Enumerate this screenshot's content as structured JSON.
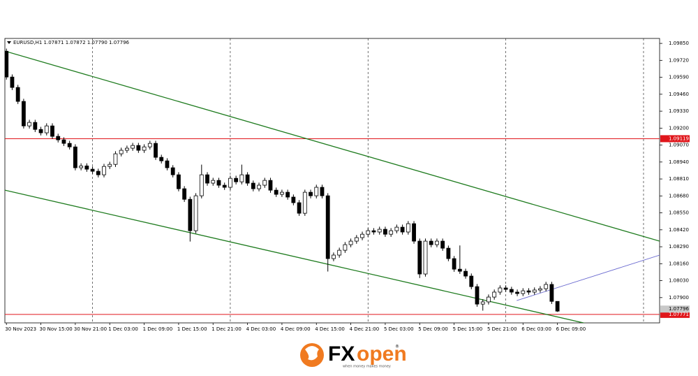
{
  "chart_data": {
    "type": "candlestick",
    "title": "EURUSD,H1  1.07871 1.07872 1.07790 1.07796",
    "categories": [
      "30 Nov 2023",
      null,
      null,
      null,
      null,
      null,
      "30 Nov 15:00",
      null,
      null,
      null,
      null,
      null,
      "30 Nov 21:00",
      null,
      null,
      null,
      null,
      null,
      "1 Dec 03:00",
      null,
      null,
      null,
      null,
      null,
      "1 Dec 09:00",
      null,
      null,
      null,
      null,
      null,
      "1 Dec 15:00",
      null,
      null,
      null,
      null,
      null,
      "1 Dec 21:00",
      null,
      null,
      null,
      null,
      null,
      "4 Dec 03:00",
      null,
      null,
      null,
      null,
      null,
      "4 Dec 09:00",
      null,
      null,
      null,
      null,
      null,
      "4 Dec 15:00",
      null,
      null,
      null,
      null,
      null,
      "4 Dec 21:00",
      null,
      null,
      null,
      null,
      null,
      "5 Dec 03:00",
      null,
      null,
      null,
      null,
      null,
      "5 Dec 09:00",
      null,
      null,
      null,
      null,
      null,
      "5 Dec 15:00",
      null,
      null,
      null,
      null,
      null,
      "5 Dec 21:00",
      null,
      null,
      null,
      null,
      null,
      "6 Dec 03:00",
      null,
      null,
      null,
      null,
      null,
      "6 Dec 09:00"
    ],
    "open": [
      1.0979,
      1.09592,
      1.09512,
      1.09405,
      1.09217,
      1.09244,
      1.0919,
      1.09164,
      1.09217,
      1.09137,
      1.0911,
      1.09083,
      1.09056,
      1.08896,
      1.0891,
      1.08885,
      1.08869,
      1.08842,
      1.08906,
      1.08922,
      1.09003,
      1.0903,
      1.09046,
      1.09067,
      1.0903,
      1.09056,
      1.09083,
      1.08976,
      1.08949,
      1.08896,
      1.08842,
      1.08735,
      1.08654,
      1.08413,
      1.08681,
      1.08842,
      1.08778,
      1.08799,
      1.08762,
      1.08746,
      1.08815,
      1.08788,
      1.08842,
      1.08778,
      1.08735,
      1.08762,
      1.08799,
      1.08724,
      1.08692,
      1.08708,
      1.08671,
      1.08628,
      1.08547,
      1.08708,
      1.08681,
      1.08746,
      1.08681,
      1.08199,
      1.08226,
      1.08263,
      1.08306,
      1.08333,
      1.0836,
      1.08386,
      1.08413,
      1.08403,
      1.08424,
      1.08386,
      1.08413,
      1.0844,
      1.08403,
      1.08467,
      1.08333,
      1.08081,
      1.08333,
      1.08306,
      1.08333,
      1.08279,
      1.08199,
      1.08118,
      1.08102,
      1.08065,
      1.07984,
      1.0785,
      1.07867,
      1.07904,
      1.07942,
      1.07974,
      1.07963,
      1.07942,
      1.07931,
      1.07952,
      1.07942,
      1.07958,
      1.07968,
      1.08001,
      1.07871
    ],
    "high": [
      1.0981,
      1.09612,
      1.09532,
      1.09425,
      1.09264,
      1.09264,
      1.0921,
      1.09237,
      1.09237,
      1.09157,
      1.0913,
      1.09103,
      1.09076,
      1.0893,
      1.0893,
      1.08905,
      1.08889,
      1.08926,
      1.08942,
      1.09023,
      1.0905,
      1.09066,
      1.09087,
      1.09087,
      1.09076,
      1.09103,
      1.09103,
      1.08996,
      1.08969,
      1.08916,
      1.08862,
      1.08755,
      1.08674,
      1.08701,
      1.0892,
      1.08862,
      1.08819,
      1.08819,
      1.08782,
      1.08835,
      1.08835,
      1.0892,
      1.08862,
      1.08798,
      1.08782,
      1.08819,
      1.08819,
      1.08744,
      1.08728,
      1.08728,
      1.08691,
      1.08648,
      1.08728,
      1.08728,
      1.08766,
      1.08766,
      1.08701,
      1.08246,
      1.08283,
      1.08326,
      1.08353,
      1.0838,
      1.08406,
      1.08433,
      1.08433,
      1.08444,
      1.08444,
      1.08433,
      1.0846,
      1.0846,
      1.08487,
      1.08487,
      1.08353,
      1.08353,
      1.08353,
      1.08353,
      1.08353,
      1.08299,
      1.08219,
      1.083,
      1.08122,
      1.08085,
      1.08004,
      1.07887,
      1.07924,
      1.07962,
      1.07994,
      1.07994,
      1.07983,
      1.07962,
      1.07972,
      1.07972,
      1.07978,
      1.07988,
      1.08021,
      1.08021,
      1.07872
    ],
    "low": [
      1.09572,
      1.09492,
      1.09385,
      1.09197,
      1.09197,
      1.0917,
      1.09144,
      1.09144,
      1.09117,
      1.0909,
      1.09063,
      1.09036,
      1.08876,
      1.08876,
      1.08865,
      1.08849,
      1.08822,
      1.08822,
      1.08886,
      1.08902,
      1.08983,
      1.0901,
      1.09026,
      1.0901,
      1.0901,
      1.09036,
      1.08956,
      1.08929,
      1.08876,
      1.08822,
      1.08715,
      1.08634,
      1.0833,
      1.08393,
      1.08661,
      1.08758,
      1.08758,
      1.08742,
      1.08726,
      1.08726,
      1.08768,
      1.08768,
      1.08758,
      1.08715,
      1.08715,
      1.08742,
      1.08704,
      1.08672,
      1.08672,
      1.08651,
      1.08608,
      1.08527,
      1.08527,
      1.08661,
      1.08661,
      1.08661,
      1.081,
      1.08179,
      1.08206,
      1.08243,
      1.08286,
      1.08313,
      1.0834,
      1.08366,
      1.08383,
      1.08383,
      1.08366,
      1.08366,
      1.08393,
      1.08383,
      1.08383,
      1.08313,
      1.0805,
      1.08061,
      1.08286,
      1.08286,
      1.08259,
      1.08179,
      1.08098,
      1.08082,
      1.08045,
      1.07964,
      1.0783,
      1.078,
      1.07847,
      1.07884,
      1.07922,
      1.07943,
      1.07922,
      1.07911,
      1.07911,
      1.07922,
      1.07922,
      1.07938,
      1.07948,
      1.07851,
      1.0779
    ],
    "close": [
      1.09592,
      1.09512,
      1.09405,
      1.09217,
      1.09244,
      1.0919,
      1.09164,
      1.09217,
      1.09137,
      1.0911,
      1.09083,
      1.09056,
      1.08896,
      1.0891,
      1.08885,
      1.08869,
      1.08842,
      1.08906,
      1.08922,
      1.09003,
      1.0903,
      1.09046,
      1.09067,
      1.0903,
      1.09056,
      1.09083,
      1.08976,
      1.08949,
      1.08896,
      1.08842,
      1.08735,
      1.08654,
      1.08413,
      1.08681,
      1.08842,
      1.08778,
      1.08799,
      1.08762,
      1.08746,
      1.08815,
      1.08788,
      1.08842,
      1.08778,
      1.08735,
      1.08762,
      1.08799,
      1.08724,
      1.08692,
      1.08708,
      1.08671,
      1.08628,
      1.08547,
      1.08708,
      1.08681,
      1.08746,
      1.08681,
      1.08199,
      1.08226,
      1.08263,
      1.08306,
      1.08333,
      1.0836,
      1.08386,
      1.08413,
      1.08403,
      1.08424,
      1.08386,
      1.08413,
      1.0844,
      1.08403,
      1.08467,
      1.08333,
      1.08081,
      1.08333,
      1.08306,
      1.08333,
      1.08279,
      1.08199,
      1.08118,
      1.08102,
      1.08065,
      1.07984,
      1.0785,
      1.07867,
      1.07904,
      1.07942,
      1.07974,
      1.07963,
      1.07942,
      1.07931,
      1.07952,
      1.07942,
      1.07958,
      1.07968,
      1.08001,
      1.07871,
      1.07796
    ],
    "up_color": "#ffffff",
    "down_color": "#000000",
    "xlim": [
      -0.27,
      113.8
    ],
    "ylim": [
      1.07706,
      1.09888
    ],
    "yticks": [
      {
        "value": 1.0985,
        "label": "1.09850"
      },
      {
        "value": 1.0972,
        "label": "1.09720"
      },
      {
        "value": 1.0959,
        "label": "1.09590"
      },
      {
        "value": 1.0946,
        "label": "1.09460"
      },
      {
        "value": 1.0933,
        "label": "1.09330"
      },
      {
        "value": 1.092,
        "label": "1.09200"
      },
      {
        "value": 1.0907,
        "label": "1.09070"
      },
      {
        "value": 1.0894,
        "label": "1.08940"
      },
      {
        "value": 1.0881,
        "label": "1.08810"
      },
      {
        "value": 1.0868,
        "label": "1.08680"
      },
      {
        "value": 1.0855,
        "label": "1.08550"
      },
      {
        "value": 1.0842,
        "label": "1.08420"
      },
      {
        "value": 1.0829,
        "label": "1.08290"
      },
      {
        "value": 1.0816,
        "label": "1.08160"
      },
      {
        "value": 1.0803,
        "label": "1.08030"
      },
      {
        "value": 1.079,
        "label": "1.07900"
      }
    ],
    "separators": [
      15,
      39,
      63,
      87,
      111
    ],
    "levels": [
      {
        "value": 1.09119,
        "color": "#e0161b"
      },
      {
        "value": 1.07771,
        "color": "#e0161b"
      }
    ],
    "bid": 1.07796,
    "trendlines": [
      {
        "color": "#1e7b1e",
        "points": [
          [
            -0.27,
            1.09791
          ],
          [
            113.8,
            1.08333
          ]
        ]
      },
      {
        "color": "#1e7b1e",
        "points": [
          [
            -0.27,
            1.08724
          ],
          [
            113.8,
            1.07572
          ]
        ]
      },
      {
        "color": "#6a6ad0",
        "points": [
          [
            88.9,
            1.07877
          ],
          [
            113.8,
            1.08226
          ]
        ]
      }
    ]
  },
  "brand": {
    "fx": "FX",
    "open": "open",
    "reg": "®",
    "tagline": "when money makes money"
  }
}
